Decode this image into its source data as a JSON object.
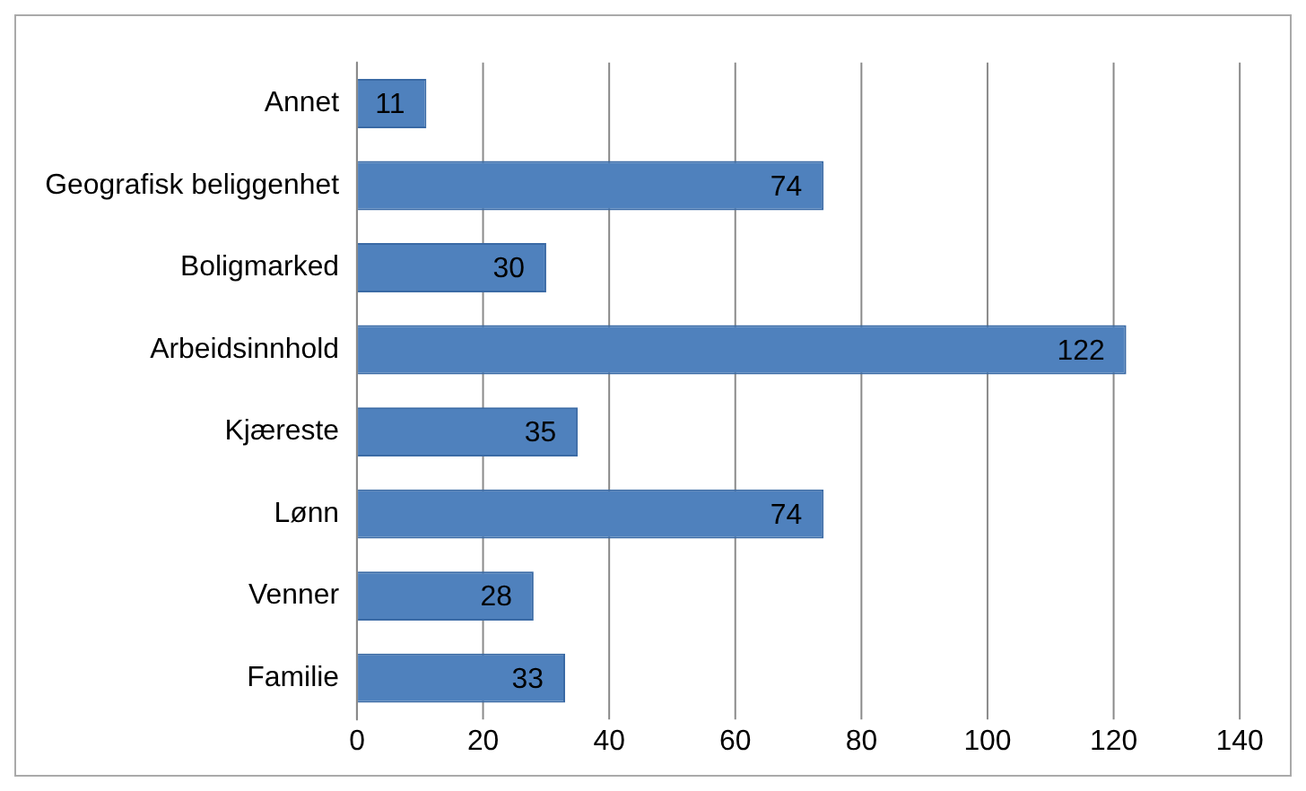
{
  "chart_data": {
    "type": "bar",
    "orientation": "horizontal",
    "categories": [
      "Annet",
      "Geografisk beliggenhet",
      "Boligmarked",
      "Arbeidsinnhold",
      "Kjæreste",
      "Lønn",
      "Venner",
      "Familie"
    ],
    "values": [
      11,
      74,
      30,
      122,
      35,
      74,
      28,
      33
    ],
    "color": "#4f81bd",
    "xlim": [
      0,
      140
    ],
    "xticks": [
      0,
      20,
      40,
      60,
      80,
      100,
      120,
      140
    ],
    "grid": "x",
    "data_labels": true,
    "legend": false
  }
}
